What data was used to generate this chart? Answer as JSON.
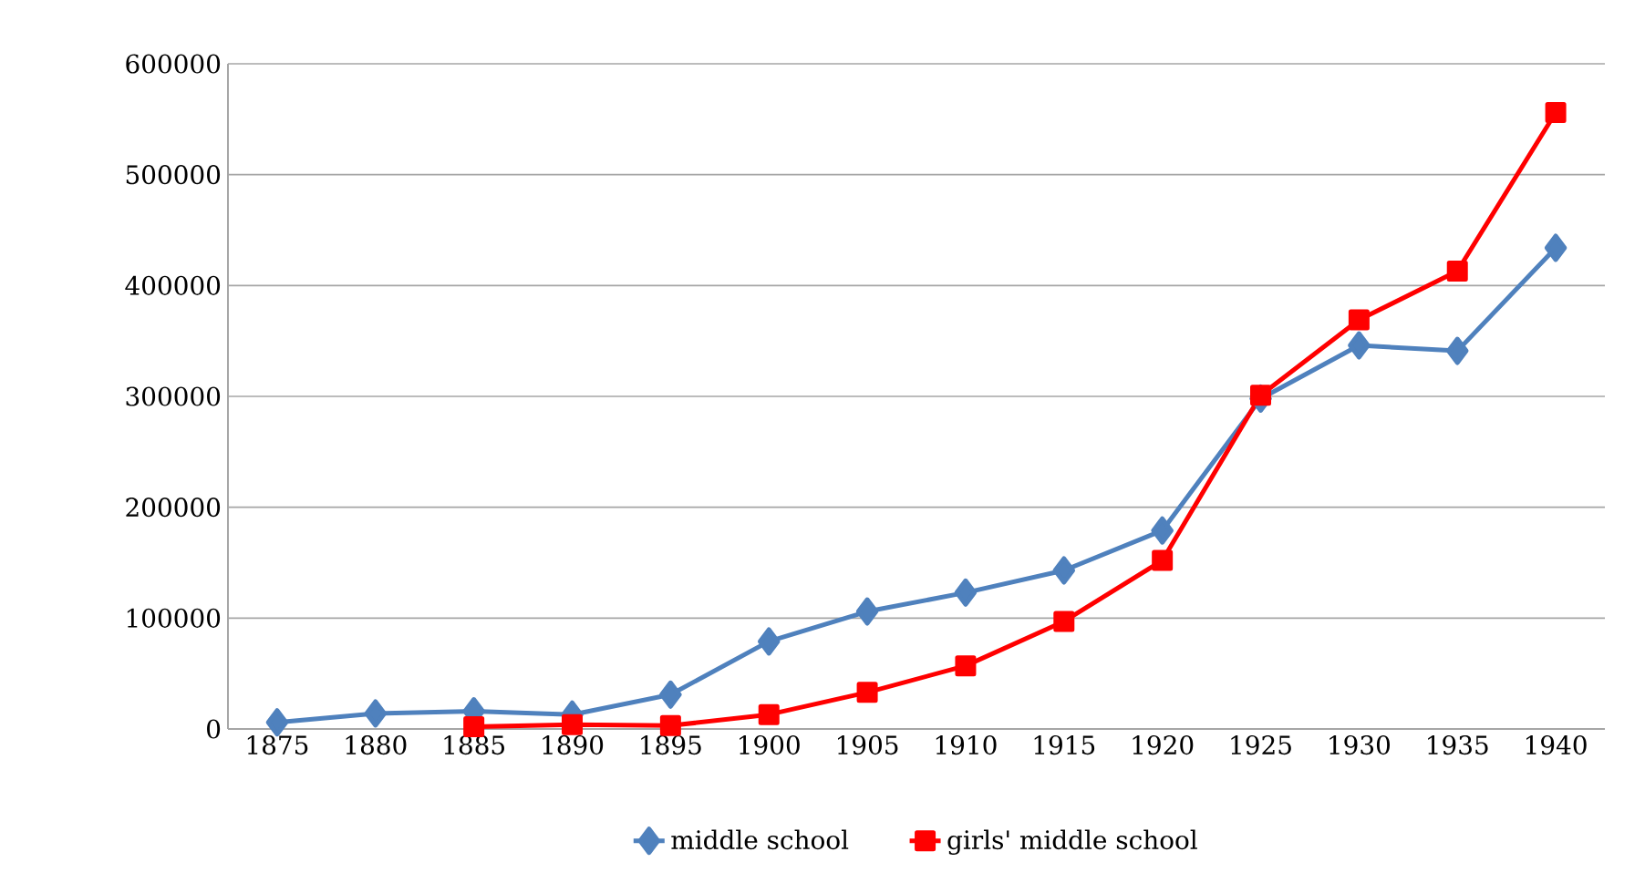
{
  "chart_data": {
    "type": "line",
    "categories": [
      "1875",
      "1880",
      "1885",
      "1890",
      "1895",
      "1900",
      "1905",
      "1910",
      "1915",
      "1920",
      "1925",
      "1930",
      "1935",
      "1940"
    ],
    "series": [
      {
        "name": "middle school",
        "color": "#4f81bd",
        "marker": "diamond",
        "values": [
          6000,
          14000,
          16000,
          13000,
          31000,
          79000,
          106000,
          123000,
          143000,
          179000,
          298000,
          346000,
          341000,
          434000
        ]
      },
      {
        "name": "girls' middle school",
        "color": "#ff0000",
        "marker": "square",
        "values": [
          null,
          null,
          2000,
          4000,
          3000,
          13000,
          33000,
          57000,
          97000,
          152000,
          301000,
          369000,
          413000,
          556000
        ]
      }
    ],
    "ylim": [
      0,
      600000
    ],
    "yticks": [
      0,
      100000,
      200000,
      300000,
      400000,
      500000,
      600000
    ],
    "grid": "y",
    "legend": "bottom",
    "line_style": "solid"
  }
}
